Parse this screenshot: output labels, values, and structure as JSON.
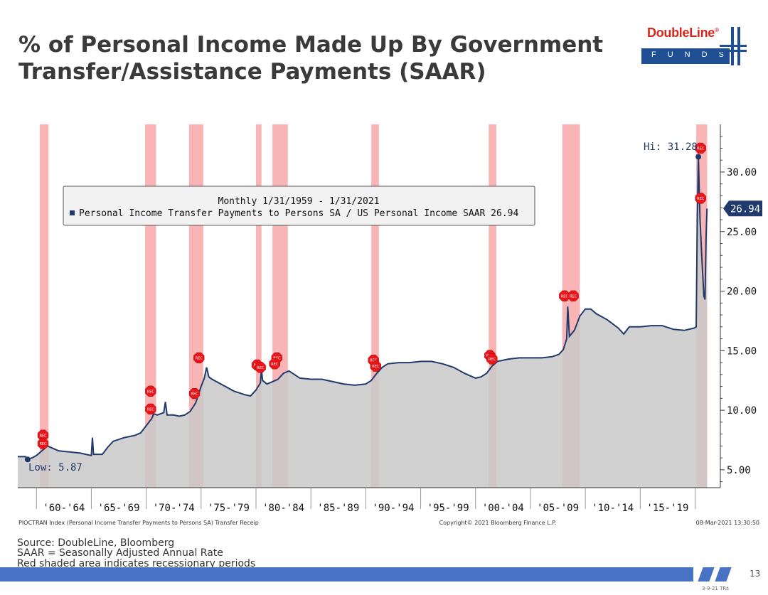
{
  "slide": {
    "title_line1": "% of Personal Income Made Up By Government",
    "title_line2": "Transfer/Assistance Payments (SAAR)",
    "logo_name": "DoubleLine",
    "logo_reg": "®",
    "logo_sub": "FUNDS",
    "source_lines": [
      "Source: DoubleLine, Bloomberg",
      "SAAR = Seasonally Adjusted Annual Rate",
      "Red shaded area indicates recessionary periods"
    ],
    "page_number": "13",
    "date_code": "3-9-21 TRs"
  },
  "colors": {
    "line": "#1f3a6b",
    "area": "#c9c9c9",
    "recession": "#f7a3a3",
    "rec_marker": "#e8161b",
    "footer": "#4873c4",
    "last_value_bg": "#1f3a6b"
  },
  "chart_data": {
    "type": "area",
    "title": "",
    "legend_title": "Monthly 1/31/1959 - 1/31/2021",
    "series_label": "Personal Income Transfer Payments to Persons SA / US Personal Income SAAR 26.94",
    "ylim": [
      3.5,
      34
    ],
    "xlim": [
      1958.3,
      2022.3
    ],
    "y_ticks": [
      5,
      10,
      15,
      20,
      25,
      30
    ],
    "y_tick_labels": [
      "5.00",
      "10.00",
      "15.00",
      "20.00",
      "25.00",
      "30.00"
    ],
    "x_tick_labels": [
      "'60-'64",
      "'65-'69",
      "'70-'74",
      "'75-'79",
      "'80-'84",
      "'85-'89",
      "'90-'94",
      "'95-'99",
      "'00-'04",
      "'05-'09",
      "'10-'14",
      "'15-'19"
    ],
    "x_tick_positions": [
      1960,
      1965,
      1970,
      1975,
      1980,
      1985,
      1990,
      1995,
      2000,
      2005,
      2010,
      2015,
      2020
    ],
    "high_label": "Hi: 31.28",
    "high_point": {
      "x": 2020.3,
      "y": 31.28
    },
    "low_label": "Low: 5.87",
    "low_point": {
      "x": 1959.2,
      "y": 5.87
    },
    "last_value_label": "26.94",
    "last_value": 26.94,
    "rec_label": "REC",
    "recessions": [
      {
        "start": 1960.3,
        "end": 1961.1
      },
      {
        "start": 1969.9,
        "end": 1970.9
      },
      {
        "start": 1973.9,
        "end": 1975.2
      },
      {
        "start": 1980.0,
        "end": 1980.5
      },
      {
        "start": 1981.5,
        "end": 1982.9
      },
      {
        "start": 1990.5,
        "end": 1991.2
      },
      {
        "start": 2001.2,
        "end": 2001.9
      },
      {
        "start": 2007.9,
        "end": 2009.5
      },
      {
        "start": 2020.1,
        "end": 2021.1
      }
    ],
    "rec_markers": [
      {
        "x": 1960.6,
        "y": 7.9
      },
      {
        "x": 1960.6,
        "y": 7.2
      },
      {
        "x": 1970.4,
        "y": 11.6
      },
      {
        "x": 1970.4,
        "y": 10.1
      },
      {
        "x": 1974.4,
        "y": 11.4
      },
      {
        "x": 1974.8,
        "y": 14.4
      },
      {
        "x": 1980.1,
        "y": 13.8
      },
      {
        "x": 1980.4,
        "y": 13.6
      },
      {
        "x": 1981.9,
        "y": 14.4
      },
      {
        "x": 1981.7,
        "y": 13.9
      },
      {
        "x": 1990.7,
        "y": 14.2
      },
      {
        "x": 1990.9,
        "y": 13.7
      },
      {
        "x": 2001.3,
        "y": 14.6
      },
      {
        "x": 2001.5,
        "y": 14.3
      },
      {
        "x": 2008.1,
        "y": 19.6
      },
      {
        "x": 2008.9,
        "y": 19.6
      },
      {
        "x": 2020.5,
        "y": 32.0
      },
      {
        "x": 2020.5,
        "y": 27.8
      }
    ],
    "points": [
      [
        1959.0,
        6.1
      ],
      [
        1959.2,
        5.87
      ],
      [
        1959.6,
        6.0
      ],
      [
        1960.0,
        6.2
      ],
      [
        1960.5,
        6.6
      ],
      [
        1961.0,
        7.0
      ],
      [
        1961.5,
        6.8
      ],
      [
        1962.0,
        6.6
      ],
      [
        1963.0,
        6.5
      ],
      [
        1964.0,
        6.4
      ],
      [
        1964.5,
        6.3
      ],
      [
        1965.0,
        6.2
      ],
      [
        1965.1,
        7.7
      ],
      [
        1965.2,
        6.3
      ],
      [
        1966.0,
        6.3
      ],
      [
        1966.5,
        6.9
      ],
      [
        1967.0,
        7.4
      ],
      [
        1968.0,
        7.7
      ],
      [
        1969.0,
        7.9
      ],
      [
        1969.5,
        8.1
      ],
      [
        1970.0,
        8.7
      ],
      [
        1970.5,
        9.3
      ],
      [
        1970.7,
        9.7
      ],
      [
        1971.0,
        9.6
      ],
      [
        1971.6,
        9.8
      ],
      [
        1971.75,
        10.7
      ],
      [
        1971.9,
        9.6
      ],
      [
        1972.5,
        9.6
      ],
      [
        1973.0,
        9.5
      ],
      [
        1973.5,
        9.6
      ],
      [
        1974.0,
        9.9
      ],
      [
        1974.5,
        10.6
      ],
      [
        1975.0,
        12.0
      ],
      [
        1975.3,
        12.7
      ],
      [
        1975.5,
        13.6
      ],
      [
        1975.7,
        12.8
      ],
      [
        1976.0,
        12.6
      ],
      [
        1977.0,
        12.1
      ],
      [
        1978.0,
        11.6
      ],
      [
        1979.0,
        11.3
      ],
      [
        1979.5,
        11.2
      ],
      [
        1980.0,
        11.7
      ],
      [
        1980.4,
        12.3
      ],
      [
        1980.5,
        13.4
      ],
      [
        1980.6,
        12.5
      ],
      [
        1981.0,
        12.2
      ],
      [
        1981.5,
        12.4
      ],
      [
        1982.0,
        12.6
      ],
      [
        1982.5,
        13.1
      ],
      [
        1983.0,
        13.3
      ],
      [
        1983.5,
        13.0
      ],
      [
        1984.0,
        12.7
      ],
      [
        1985.0,
        12.6
      ],
      [
        1986.0,
        12.6
      ],
      [
        1987.0,
        12.4
      ],
      [
        1988.0,
        12.2
      ],
      [
        1989.0,
        12.1
      ],
      [
        1990.0,
        12.2
      ],
      [
        1990.5,
        12.5
      ],
      [
        1991.0,
        13.1
      ],
      [
        1991.5,
        13.6
      ],
      [
        1992.0,
        13.9
      ],
      [
        1993.0,
        14.0
      ],
      [
        1994.0,
        14.0
      ],
      [
        1995.0,
        14.1
      ],
      [
        1996.0,
        14.1
      ],
      [
        1997.0,
        13.9
      ],
      [
        1998.0,
        13.6
      ],
      [
        1999.0,
        13.1
      ],
      [
        2000.0,
        12.7
      ],
      [
        2000.5,
        12.8
      ],
      [
        2001.0,
        13.1
      ],
      [
        2001.5,
        13.7
      ],
      [
        2002.0,
        14.1
      ],
      [
        2003.0,
        14.3
      ],
      [
        2004.0,
        14.4
      ],
      [
        2005.0,
        14.4
      ],
      [
        2006.0,
        14.4
      ],
      [
        2007.0,
        14.5
      ],
      [
        2007.6,
        14.7
      ],
      [
        2008.0,
        15.1
      ],
      [
        2008.3,
        16.0
      ],
      [
        2008.4,
        18.7
      ],
      [
        2008.55,
        16.2
      ],
      [
        2009.0,
        16.7
      ],
      [
        2009.5,
        17.9
      ],
      [
        2010.0,
        18.5
      ],
      [
        2010.5,
        18.5
      ],
      [
        2011.0,
        18.1
      ],
      [
        2012.0,
        17.6
      ],
      [
        2013.0,
        16.9
      ],
      [
        2013.5,
        16.4
      ],
      [
        2014.0,
        17.0
      ],
      [
        2015.0,
        17.0
      ],
      [
        2016.0,
        17.1
      ],
      [
        2017.0,
        17.1
      ],
      [
        2018.0,
        16.8
      ],
      [
        2019.0,
        16.7
      ],
      [
        2019.9,
        16.9
      ],
      [
        2020.1,
        17.0
      ],
      [
        2020.2,
        26.0
      ],
      [
        2020.3,
        31.28
      ],
      [
        2020.45,
        26.0
      ],
      [
        2020.6,
        23.0
      ],
      [
        2020.8,
        19.6
      ],
      [
        2020.9,
        19.3
      ],
      [
        2021.0,
        24.5
      ],
      [
        2021.08,
        26.94
      ]
    ],
    "footer_left": "PIOCTRAN Index (Personal Income Transfer Payments to Persons SA) Transfer Receip",
    "footer_center": "Copyright© 2021 Bloomberg Finance L.P.",
    "footer_right": "08-Mar-2021 13:30:50"
  }
}
